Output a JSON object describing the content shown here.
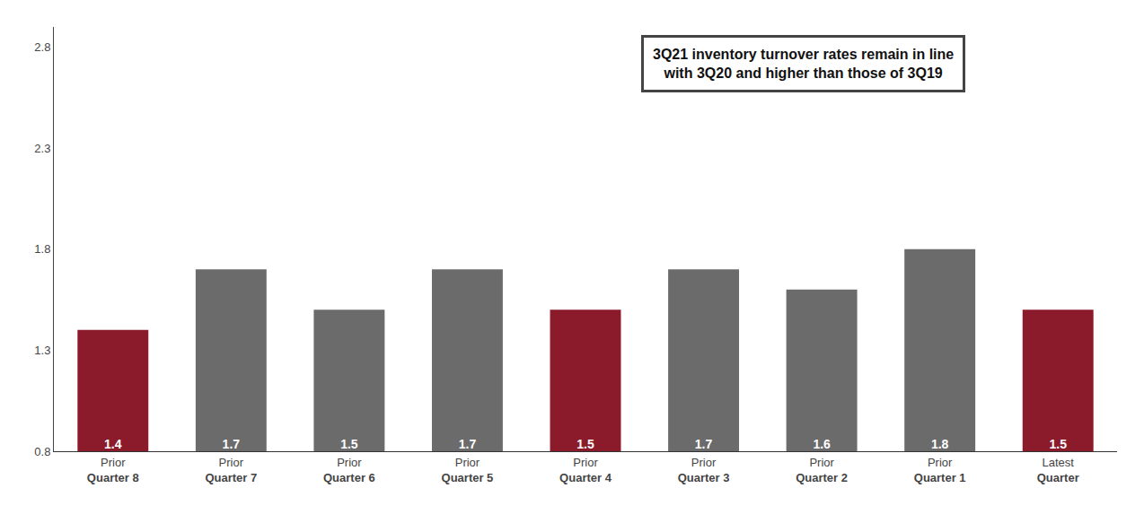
{
  "chart_data": {
    "type": "bar",
    "categories": [
      "Prior\nQuarter 8",
      "Prior\nQuarter 7",
      "Prior\nQuarter 6",
      "Prior\nQuarter 5",
      "Prior\nQuarter 4",
      "Prior\nQuarter 3",
      "Prior\nQuarter 2",
      "Prior\nQuarter 1",
      "Latest\nQuarter"
    ],
    "values": [
      1.4,
      1.7,
      1.5,
      1.7,
      1.5,
      1.7,
      1.6,
      1.8,
      1.5
    ],
    "colors": [
      "#8B1A2A",
      "#6B6B6B",
      "#6B6B6B",
      "#6B6B6B",
      "#8B1A2A",
      "#6B6B6B",
      "#6B6B6B",
      "#6B6B6B",
      "#8B1A2A"
    ],
    "ylim": [
      0.8,
      2.9
    ],
    "yticks": [
      0.8,
      1.3,
      1.8,
      2.3,
      2.8
    ],
    "grid": false,
    "data_labels": true,
    "annotation": "3Q21 inventory turnover rates remain in line\nwith 3Q20 and higher than those of 3Q19"
  }
}
